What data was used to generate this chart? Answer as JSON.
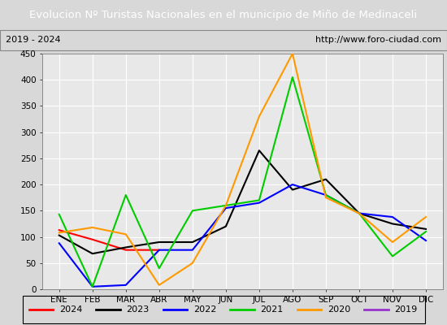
{
  "title": "Evolucion Nº Turistas Nacionales en el municipio de Miño de Medinaceli",
  "subtitle_left": "2019 - 2024",
  "subtitle_right": "http://www.foro-ciudad.com",
  "title_bg_color": "#4a7abf",
  "title_text_color": "#ffffff",
  "months": [
    "ENE",
    "FEB",
    "MAR",
    "ABR",
    "MAY",
    "JUN",
    "JUL",
    "AGO",
    "SEP",
    "OCT",
    "NOV",
    "DIC"
  ],
  "ylim": [
    0,
    450
  ],
  "yticks": [
    0,
    50,
    100,
    150,
    200,
    250,
    300,
    350,
    400,
    450
  ],
  "series": {
    "2024": {
      "color": "#ff0000",
      "data": [
        113,
        95,
        75,
        75,
        null,
        null,
        null,
        null,
        null,
        null,
        null,
        null
      ]
    },
    "2023": {
      "color": "#000000",
      "data": [
        103,
        68,
        80,
        90,
        90,
        120,
        265,
        190,
        210,
        145,
        125,
        115
      ]
    },
    "2022": {
      "color": "#0000ff",
      "data": [
        88,
        5,
        8,
        75,
        75,
        155,
        165,
        200,
        180,
        145,
        138,
        93
      ]
    },
    "2021": {
      "color": "#00cc00",
      "data": [
        143,
        5,
        180,
        40,
        150,
        160,
        170,
        405,
        180,
        145,
        63,
        110
      ]
    },
    "2020": {
      "color": "#ff9900",
      "data": [
        108,
        118,
        105,
        8,
        50,
        160,
        330,
        450,
        175,
        145,
        90,
        138
      ]
    },
    "2019": {
      "color": "#9933cc",
      "data": [
        null,
        null,
        null,
        null,
        null,
        null,
        null,
        null,
        null,
        null,
        null,
        null
      ]
    }
  },
  "legend_order": [
    "2024",
    "2023",
    "2022",
    "2021",
    "2020",
    "2019"
  ],
  "outer_bg_color": "#d8d8d8",
  "plot_bg_color": "#e8e8e8",
  "grid_color": "#ffffff",
  "subtitle_bg": "#f0f0f0"
}
